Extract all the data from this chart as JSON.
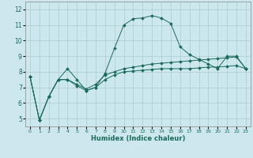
{
  "title": "",
  "xlabel": "Humidex (Indice chaleur)",
  "ylabel": "",
  "bg_color": "#cce8ee",
  "grid_color": "#aacccc",
  "line_color": "#1a6b5a",
  "xlim": [
    -0.5,
    23.5
  ],
  "ylim": [
    4.5,
    12.5
  ],
  "xticks": [
    0,
    1,
    2,
    3,
    4,
    5,
    6,
    7,
    8,
    9,
    10,
    11,
    12,
    13,
    14,
    15,
    16,
    17,
    18,
    19,
    20,
    21,
    22,
    23
  ],
  "yticks": [
    5,
    6,
    7,
    8,
    9,
    10,
    11,
    12
  ],
  "series": [
    {
      "x": [
        0,
        1,
        2,
        3,
        4,
        5,
        6,
        7,
        8,
        9,
        10,
        11,
        12,
        13,
        14,
        15,
        16,
        17,
        18,
        19,
        20,
        21,
        22,
        23
      ],
      "y": [
        7.7,
        4.9,
        6.4,
        7.5,
        8.2,
        7.5,
        6.8,
        7.0,
        7.9,
        9.5,
        11.0,
        11.4,
        11.45,
        11.6,
        11.45,
        11.1,
        9.6,
        9.1,
        8.8,
        8.5,
        8.2,
        9.0,
        9.0,
        8.2
      ],
      "marker": "D",
      "markersize": 2.0,
      "linestyle": "-"
    },
    {
      "x": [
        0,
        1,
        2,
        3,
        4,
        5,
        6,
        7,
        8,
        9,
        10,
        11,
        12,
        13,
        14,
        15,
        16,
        17,
        18,
        19,
        20,
        21,
        22,
        23
      ],
      "y": [
        7.7,
        4.9,
        6.4,
        7.5,
        7.5,
        7.2,
        6.9,
        7.2,
        7.8,
        8.0,
        8.2,
        8.3,
        8.4,
        8.5,
        8.55,
        8.6,
        8.65,
        8.7,
        8.75,
        8.8,
        8.85,
        8.9,
        8.95,
        8.2
      ],
      "marker": "D",
      "markersize": 2.0,
      "linestyle": "-"
    },
    {
      "x": [
        0,
        1,
        2,
        3,
        4,
        5,
        6,
        7,
        8,
        9,
        10,
        11,
        12,
        13,
        14,
        15,
        16,
        17,
        18,
        19,
        20,
        21,
        22,
        23
      ],
      "y": [
        7.7,
        4.9,
        6.4,
        7.5,
        7.5,
        7.1,
        6.8,
        7.0,
        7.5,
        7.8,
        8.0,
        8.05,
        8.1,
        8.15,
        8.2,
        8.2,
        8.2,
        8.2,
        8.25,
        8.3,
        8.3,
        8.35,
        8.4,
        8.2
      ],
      "marker": "D",
      "markersize": 2.0,
      "linestyle": "-"
    }
  ]
}
